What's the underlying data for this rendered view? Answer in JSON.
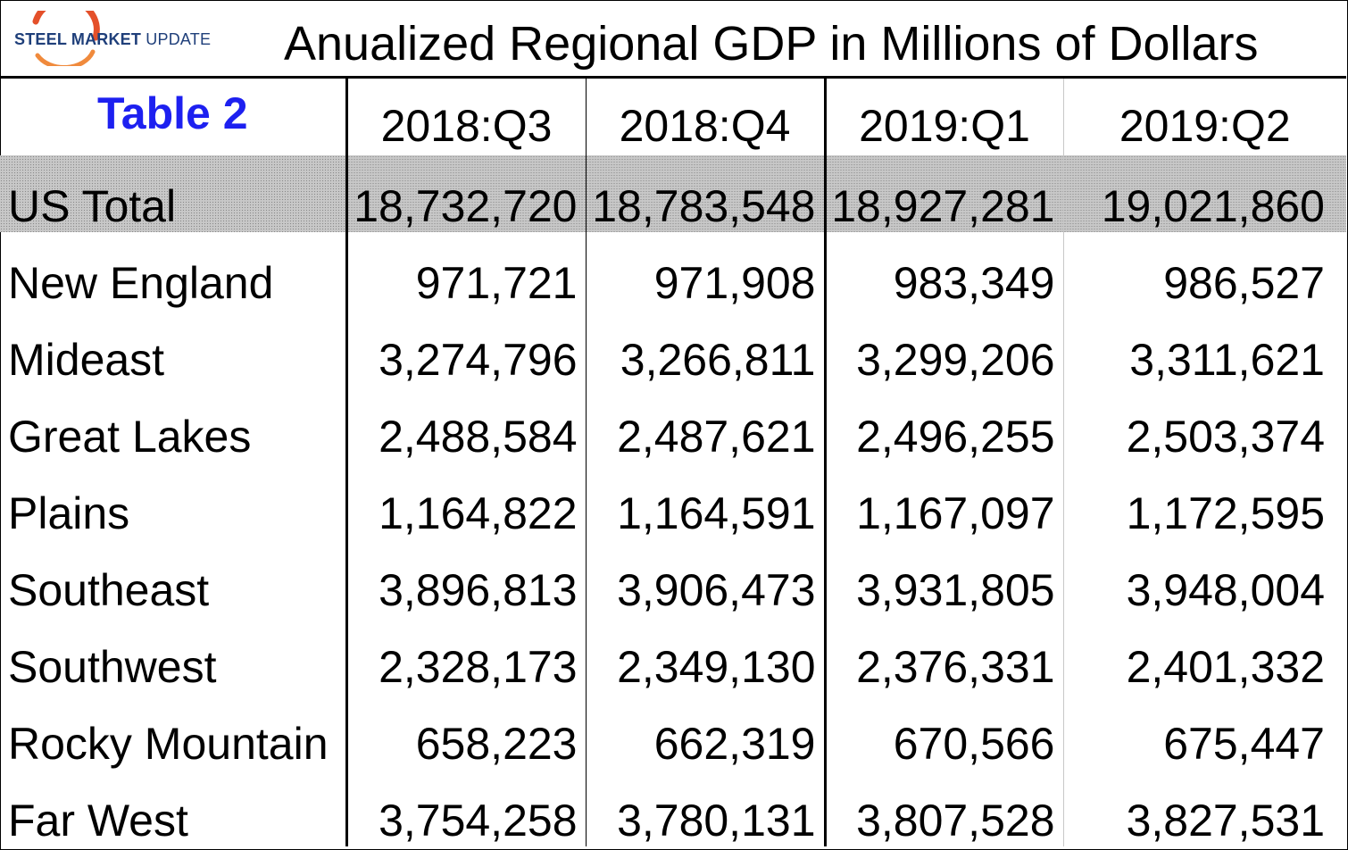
{
  "logo": {
    "part1": "STEEL ",
    "part2": "MARKET ",
    "part3": "UPDATE",
    "arc_color": "#e4502a",
    "text_color": "#1f3f7a"
  },
  "title": "Anualized Regional GDP in Millions of Dollars",
  "table_label": "Table 2",
  "colors": {
    "table_label": "#1d20f0",
    "total_row_bg": "#c8c8c8"
  },
  "chart_data": {
    "type": "table",
    "title": "Anualized Regional GDP in Millions of Dollars",
    "columns": [
      "2018:Q3",
      "2018:Q4",
      "2019:Q1",
      "2019:Q2"
    ],
    "rows": [
      {
        "region": "US Total",
        "values": [
          "18,732,720",
          "18,783,548",
          "18,927,281",
          "19,021,860"
        ]
      },
      {
        "region": "New England",
        "values": [
          "971,721",
          "971,908",
          "983,349",
          "986,527"
        ]
      },
      {
        "region": "Mideast",
        "values": [
          "3,274,796",
          "3,266,811",
          "3,299,206",
          "3,311,621"
        ]
      },
      {
        "region": "Great Lakes",
        "values": [
          "2,488,584",
          "2,487,621",
          "2,496,255",
          "2,503,374"
        ]
      },
      {
        "region": "Plains",
        "values": [
          "1,164,822",
          "1,164,591",
          "1,167,097",
          "1,172,595"
        ]
      },
      {
        "region": "Southeast",
        "values": [
          "3,896,813",
          "3,906,473",
          "3,931,805",
          "3,948,004"
        ]
      },
      {
        "region": "Southwest",
        "values": [
          "2,328,173",
          "2,349,130",
          "2,376,331",
          "2,401,332"
        ]
      },
      {
        "region": "Rocky Mountain",
        "values": [
          "658,223",
          "662,319",
          "670,566",
          "675,447"
        ]
      },
      {
        "region": "Far West",
        "values": [
          "3,754,258",
          "3,780,131",
          "3,807,528",
          "3,827,531"
        ]
      }
    ]
  }
}
